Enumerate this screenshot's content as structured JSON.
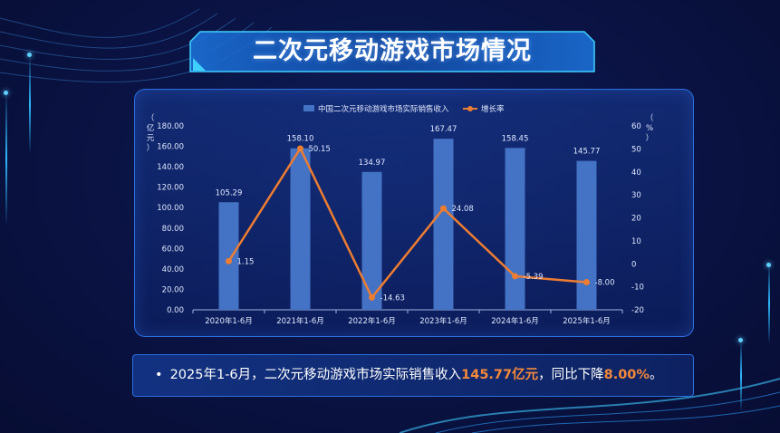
{
  "page": {
    "title": "二次元移动游戏市场情况",
    "summary": {
      "bullet": "•",
      "prefix": "2025年1-6月，二次元移动游戏市场实际销售收入",
      "highlight1": "145.77亿元",
      "middle": "，同比下降",
      "highlight2": "8.00%",
      "suffix": "。"
    }
  },
  "colors": {
    "bar": "#4472c4",
    "line": "#ed7d31",
    "accent": "#f5893a",
    "axis_text": "#dfe8ff"
  },
  "chart_data": {
    "type": "bar",
    "categories": [
      "2020年1-6月",
      "2021年1-6月",
      "2022年1-6月",
      "2023年1-6月",
      "2024年1-6月",
      "2025年1-6月"
    ],
    "series": [
      {
        "name": "中国二次元移动游戏市场实际销售收入",
        "type": "bar",
        "axis": "left",
        "values": [
          105.29,
          158.1,
          134.97,
          167.47,
          158.45,
          145.77
        ],
        "labels": [
          "105.29",
          "158.10",
          "134.97",
          "167.47",
          "158.45",
          "145.77"
        ]
      },
      {
        "name": "增长率",
        "type": "line",
        "axis": "right",
        "values": [
          1.15,
          50.15,
          -14.63,
          24.08,
          -5.39,
          -8.0
        ],
        "labels": [
          "1.15",
          "50.15",
          "-14.63",
          "24.08",
          "-5.39",
          "-8.00"
        ]
      }
    ],
    "ylabel": "（亿元）",
    "y2label": "（%）",
    "ylim": [
      0,
      180
    ],
    "y2lim": [
      -20,
      60
    ],
    "yticks": [
      "0.00",
      "20.00",
      "40.00",
      "60.00",
      "80.00",
      "100.00",
      "120.00",
      "140.00",
      "160.00",
      "180.00"
    ],
    "y2ticks": [
      "-20",
      "-10",
      "0",
      "10",
      "20",
      "30",
      "40",
      "50",
      "60"
    ],
    "legend": "top-center",
    "grid": false
  }
}
